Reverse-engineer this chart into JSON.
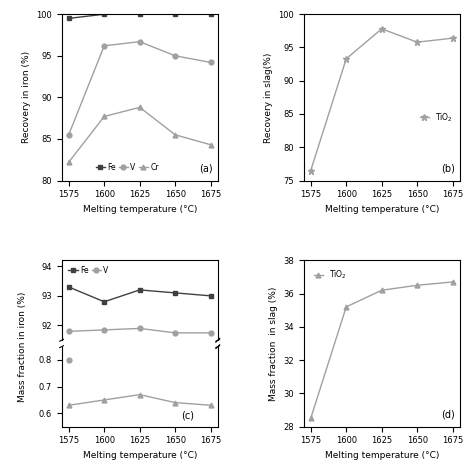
{
  "x": [
    1575,
    1600,
    1625,
    1650,
    1675
  ],
  "panel_a": {
    "Fe": [
      99.5,
      100.0,
      100.0,
      100.0,
      100.0
    ],
    "V": [
      85.5,
      96.2,
      96.7,
      95.0,
      94.2
    ],
    "Cr": [
      82.2,
      87.7,
      88.8,
      85.5,
      84.3
    ],
    "ylabel": "Recovery in iron (%)",
    "ylim": [
      80,
      100
    ],
    "yticks": [
      80,
      85,
      90,
      95,
      100
    ],
    "label": "(a)"
  },
  "panel_b": {
    "TiO2": [
      76.5,
      93.3,
      97.8,
      95.8,
      96.4
    ],
    "ylabel": "Recovery in slag(%)",
    "ylim": [
      75,
      100
    ],
    "yticks": [
      75,
      80,
      85,
      90,
      95,
      100
    ],
    "label": "(b)"
  },
  "panel_c": {
    "Fe": [
      93.3,
      92.8,
      93.2,
      93.1,
      93.0
    ],
    "V": [
      91.8,
      91.85,
      91.9,
      91.75,
      91.75
    ],
    "Cr": [
      0.63,
      0.65,
      0.67,
      0.64,
      0.63
    ],
    "ylabel": "Mass fraction in iron (%)",
    "label": "(c)",
    "yticks_low": [
      0.6,
      0.7,
      0.8
    ],
    "yticks_high": [
      92,
      93,
      94
    ],
    "ylim_low": [
      0.55,
      0.85
    ],
    "ylim_high": [
      91.5,
      94.2
    ]
  },
  "panel_d": {
    "TiO2": [
      28.5,
      35.2,
      36.2,
      36.5,
      36.7
    ],
    "ylabel": "Mass fraction  in slag (%)",
    "ylim": [
      28,
      38
    ],
    "yticks": [
      28,
      30,
      32,
      34,
      36,
      38
    ],
    "label": "(d)"
  },
  "xlabel": "Melting temperature (°C)",
  "xticks": [
    1575,
    1600,
    1625,
    1650,
    1675
  ],
  "lgray": "#a0a0a0",
  "dgray": "#404040"
}
